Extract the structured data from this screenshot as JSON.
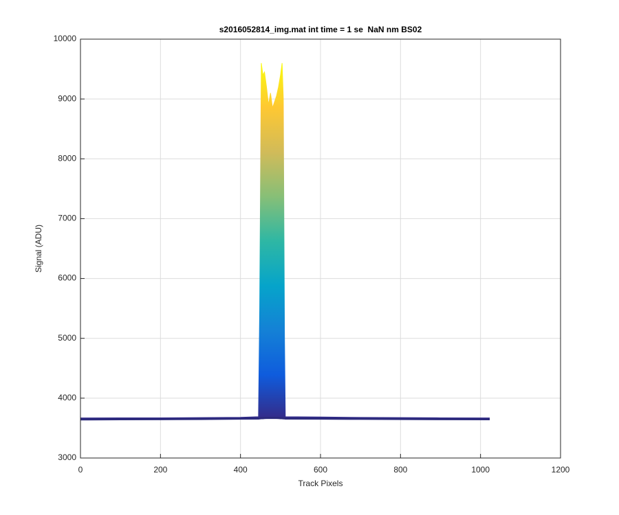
{
  "chart_data": {
    "type": "envelope",
    "title": "s2016052814_img.mat int time = 1 se  NaN nm BS02",
    "x_label": "Track Pixels",
    "y_label": "Signal (ADU)",
    "x": [
      0,
      100,
      200,
      300,
      400,
      445,
      448,
      452,
      456,
      460,
      465,
      470,
      475,
      480,
      485,
      490,
      495,
      500,
      504,
      507,
      510,
      512,
      600,
      700,
      800,
      900,
      1023
    ],
    "upper": [
      3670,
      3672,
      3672,
      3675,
      3680,
      3690,
      5500,
      9600,
      9400,
      9450,
      9200,
      8900,
      9100,
      8850,
      8950,
      9050,
      9200,
      9400,
      9600,
      9000,
      5000,
      3690,
      3685,
      3678,
      3675,
      3672,
      3670
    ],
    "lower": [
      3645,
      3648,
      3650,
      3652,
      3658,
      3660,
      3662,
      3665,
      3665,
      3668,
      3670,
      3670,
      3670,
      3670,
      3670,
      3670,
      3668,
      3665,
      3665,
      3662,
      3662,
      3660,
      3658,
      3655,
      3652,
      3650,
      3648
    ],
    "line_color": "#2c2a7c",
    "colormap": [
      "#352a87",
      "#0f5cdd",
      "#1481d6",
      "#06a4ca",
      "#2eb7a4",
      "#87bf77",
      "#d1bb59",
      "#fec832",
      "#f9fb0e"
    ],
    "xlim": [
      0,
      1200
    ],
    "xticks": [
      0,
      200,
      400,
      600,
      800,
      1000,
      1200
    ],
    "ylim": [
      3000,
      10000
    ],
    "yticks": [
      3000,
      4000,
      5000,
      6000,
      7000,
      8000,
      9000,
      10000
    ],
    "grid": true
  }
}
